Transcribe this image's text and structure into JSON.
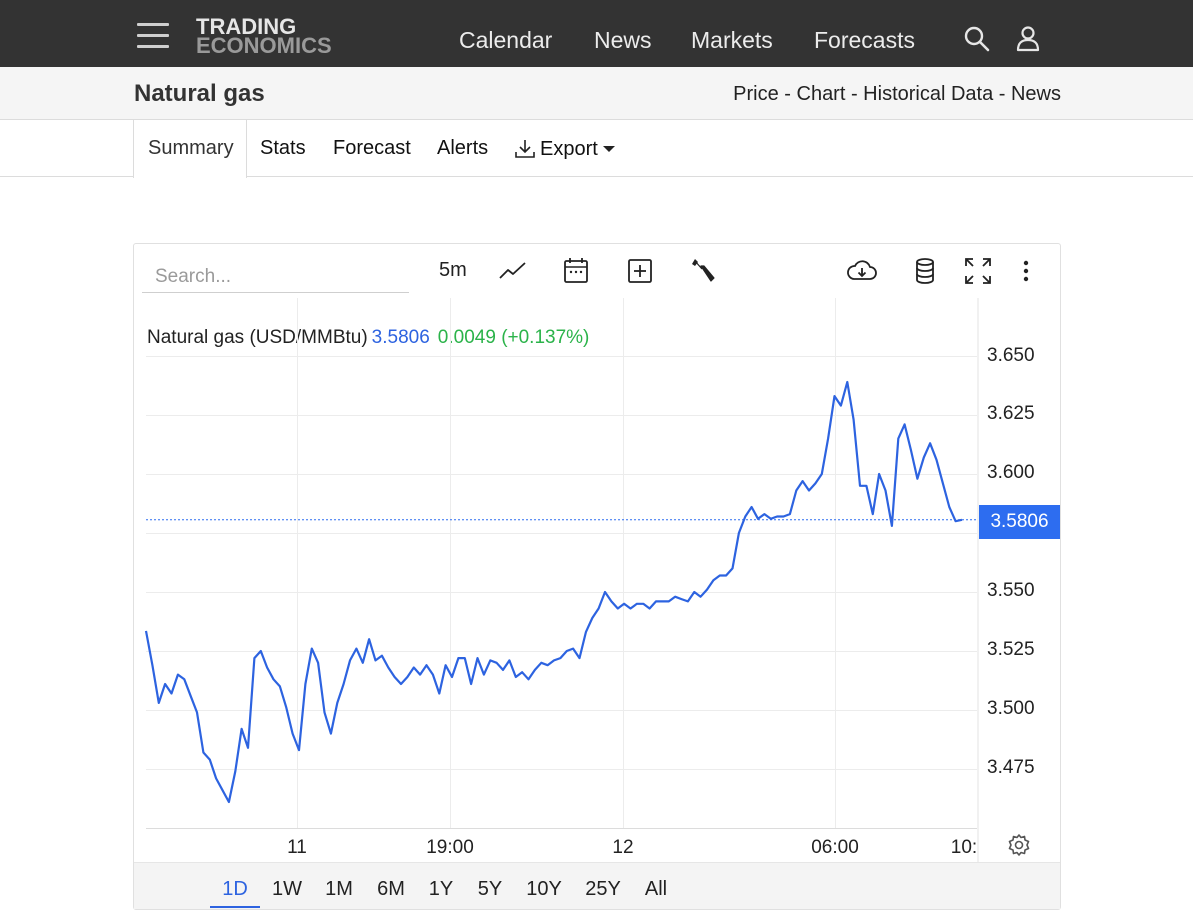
{
  "header": {
    "logo_line1": "TRADING",
    "logo_line2": "ECONOMICS",
    "nav": [
      "Calendar",
      "News",
      "Markets",
      "Forecasts"
    ]
  },
  "subheader": {
    "title": "Natural gas",
    "links": "Price - Chart - Historical Data - News"
  },
  "tabs": {
    "summary": "Summary",
    "stats": "Stats",
    "forecast": "Forecast",
    "alerts": "Alerts",
    "export": "Export"
  },
  "toolbar": {
    "search_placeholder": "Search...",
    "interval": "5m"
  },
  "legend": {
    "name": "Natural gas (USD/MMBtu)",
    "price": "3.5806",
    "change": "0.0049 (+0.137%)"
  },
  "price_tag": "3.5806",
  "ranges": [
    "1D",
    "1W",
    "1M",
    "6M",
    "1Y",
    "5Y",
    "10Y",
    "25Y",
    "All"
  ],
  "active_range": "1D",
  "colors": {
    "accent": "#2d63e0",
    "positive": "#2bb34a",
    "nav_bg": "#333333"
  },
  "chart_data": {
    "type": "line",
    "title": "Natural gas (USD/MMBtu)",
    "xlabel": "",
    "ylabel": "",
    "x_ticks": [
      "11",
      "19:00",
      "12",
      "06:00",
      "10:"
    ],
    "y_ticks": [
      "3.650",
      "3.625",
      "3.600",
      "3.550",
      "3.525",
      "3.500",
      "3.475"
    ],
    "ylim": [
      3.454,
      3.663
    ],
    "last_value": 3.5806,
    "grid": true,
    "series": [
      {
        "values": [
          3.5335,
          3.519,
          3.503,
          3.511,
          3.507,
          3.515,
          3.513,
          3.506,
          3.499,
          3.482,
          3.479,
          3.471,
          3.466,
          3.461,
          3.474,
          3.492,
          3.484,
          3.522,
          3.525,
          3.518,
          3.513,
          3.51,
          3.501,
          3.49,
          3.483,
          3.511,
          3.526,
          3.52,
          3.499,
          3.49,
          3.503,
          3.511,
          3.521,
          3.526,
          3.52,
          3.53,
          3.521,
          3.523,
          3.518,
          3.514,
          3.511,
          3.514,
          3.518,
          3.515,
          3.519,
          3.515,
          3.507,
          3.519,
          3.514,
          3.522,
          3.522,
          3.511,
          3.522,
          3.515,
          3.521,
          3.52,
          3.517,
          3.521,
          3.514,
          3.516,
          3.513,
          3.517,
          3.52,
          3.519,
          3.521,
          3.522,
          3.525,
          3.526,
          3.522,
          3.533,
          3.539,
          3.543,
          3.55,
          3.546,
          3.543,
          3.545,
          3.543,
          3.545,
          3.545,
          3.543,
          3.546,
          3.546,
          3.546,
          3.548,
          3.547,
          3.546,
          3.55,
          3.548,
          3.551,
          3.555,
          3.557,
          3.557,
          3.56,
          3.575,
          3.582,
          3.586,
          3.581,
          3.583,
          3.581,
          3.582,
          3.582,
          3.583,
          3.593,
          3.597,
          3.593,
          3.596,
          3.6,
          3.615,
          3.633,
          3.629,
          3.639,
          3.623,
          3.595,
          3.595,
          3.583,
          3.6,
          3.593,
          3.578,
          3.615,
          3.621,
          3.61,
          3.598,
          3.607,
          3.613,
          3.606,
          3.596,
          3.586,
          3.58,
          3.5806
        ]
      }
    ]
  }
}
